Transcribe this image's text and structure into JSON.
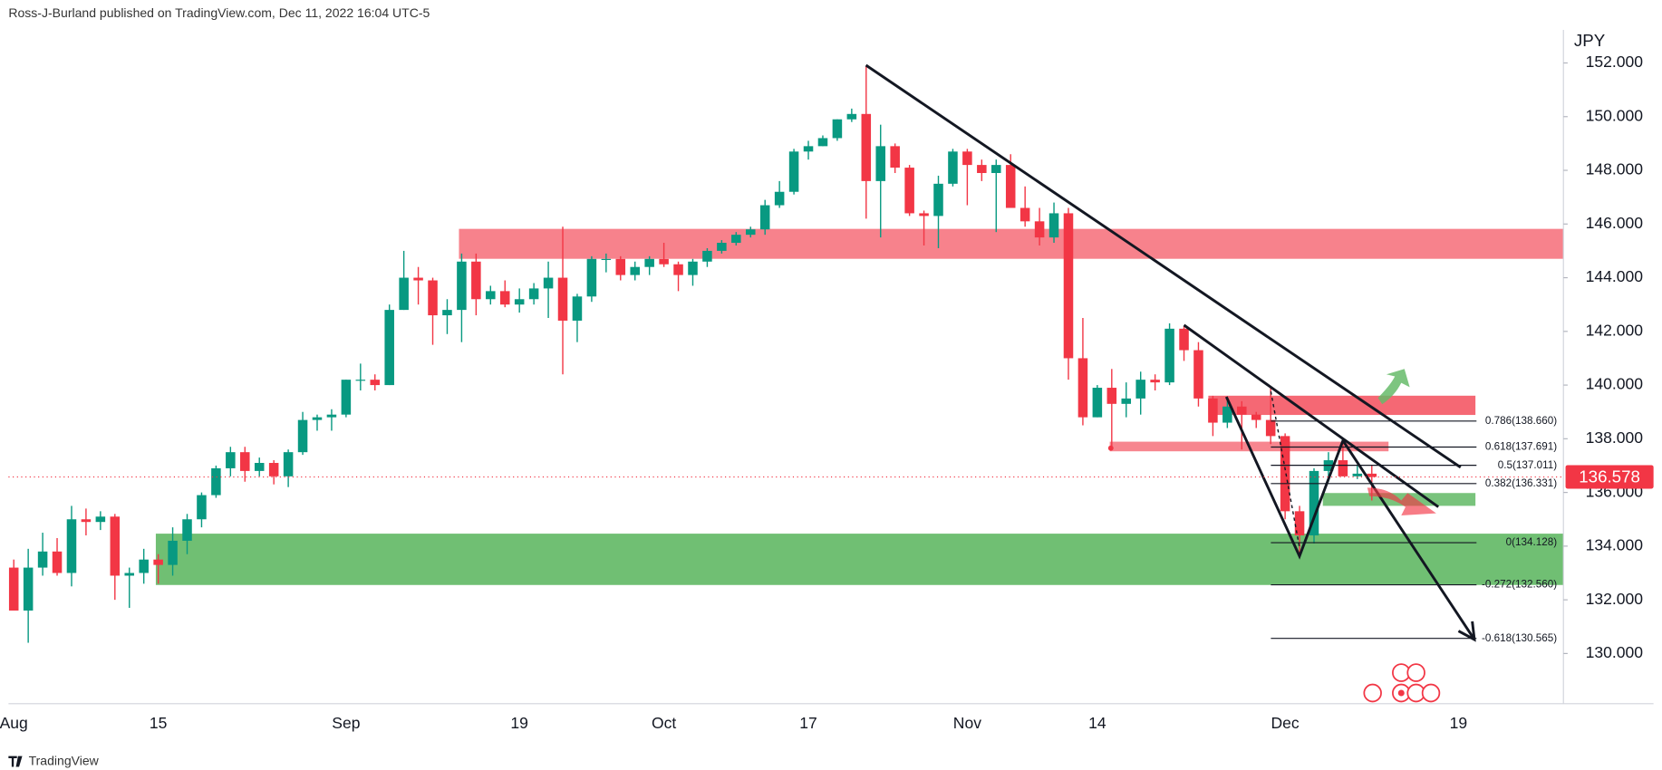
{
  "chart_data": {
    "type": "candlestick",
    "header": "Ross-J-Burland published on TradingView.com, Dec 11, 2022 16:04 UTC-5",
    "currency": "JPY",
    "brand": "TradingView",
    "up_color": "#089981",
    "down_color": "#f23645",
    "categories": [
      "Aug",
      null,
      null,
      null,
      null,
      null,
      null,
      null,
      null,
      null,
      "15",
      null,
      null,
      null,
      null,
      null,
      null,
      null,
      null,
      null,
      null,
      null,
      null,
      "Sep",
      null,
      null,
      null,
      null,
      null,
      null,
      null,
      null,
      null,
      null,
      null,
      "19",
      null,
      null,
      null,
      null,
      null,
      null,
      null,
      null,
      null,
      "Oct",
      null,
      null,
      null,
      null,
      null,
      null,
      null,
      null,
      null,
      "17",
      null,
      null,
      null,
      null,
      null,
      null,
      null,
      null,
      null,
      null,
      "Nov",
      null,
      null,
      null,
      null,
      null,
      null,
      null,
      null,
      "14",
      null,
      null,
      null,
      null,
      null,
      null,
      null,
      null,
      null,
      null,
      null,
      null,
      "Dec",
      null,
      null,
      null,
      null,
      null,
      null,
      null,
      null,
      null,
      null,
      null,
      "19",
      null,
      null,
      null,
      null,
      null,
      null,
      null
    ],
    "open": [
      133.2,
      131.6,
      133.2,
      133.8,
      133.0,
      135.0,
      134.9,
      135.1,
      132.9,
      133.0,
      133.5,
      133.3,
      134.2,
      135.0,
      135.9,
      136.9,
      137.5,
      136.8,
      137.1,
      136.6,
      137.5,
      138.7,
      138.8,
      138.9,
      140.2,
      140.2,
      140.0,
      142.8,
      144.0,
      143.9,
      142.6,
      142.8,
      144.6,
      143.2,
      143.5,
      143.0,
      143.2,
      143.6,
      144.0,
      142.4,
      143.3,
      144.7,
      144.7,
      144.1,
      144.4,
      144.7,
      144.5,
      144.1,
      144.6,
      145.0,
      145.3,
      145.6,
      145.8,
      146.7,
      147.2,
      148.7,
      148.9,
      149.2,
      149.9,
      150.1,
      147.6,
      148.9,
      148.1,
      146.4,
      146.3,
      147.5,
      148.7,
      148.2,
      147.9,
      148.2,
      146.6,
      146.1,
      145.5,
      146.4,
      141.0,
      138.8,
      139.9,
      139.3,
      139.5,
      140.2,
      140.1,
      142.1,
      141.3,
      139.5,
      138.6,
      139.2,
      138.9,
      138.7,
      138.1,
      135.3,
      134.4,
      136.8,
      137.2,
      136.6,
      136.7,
      null,
      null,
      null,
      null,
      null,
      null,
      null,
      null,
      null,
      null,
      null,
      null,
      null
    ],
    "high": [
      133.5,
      133.9,
      134.5,
      134.3,
      135.5,
      135.4,
      135.3,
      135.2,
      133.2,
      133.9,
      133.7,
      134.7,
      135.2,
      136.0,
      137.0,
      137.7,
      137.7,
      137.3,
      137.2,
      137.6,
      139.0,
      138.9,
      139.1,
      140.2,
      140.8,
      140.4,
      143.0,
      145.0,
      144.4,
      144.0,
      143.2,
      144.9,
      144.9,
      143.7,
      143.9,
      143.6,
      143.8,
      144.6,
      145.9,
      143.4,
      144.8,
      144.9,
      144.8,
      144.6,
      144.8,
      145.3,
      144.6,
      144.7,
      145.1,
      145.4,
      145.7,
      145.9,
      146.9,
      147.6,
      148.8,
      149.1,
      149.3,
      149.9,
      150.3,
      151.9,
      149.7,
      149.0,
      148.2,
      146.5,
      147.8,
      148.8,
      148.8,
      148.4,
      148.4,
      148.6,
      147.4,
      146.6,
      146.8,
      146.6,
      142.5,
      140.0,
      140.6,
      140.1,
      140.5,
      140.4,
      142.3,
      142.2,
      141.6,
      139.6,
      139.4,
      139.4,
      139.0,
      139.9,
      138.2,
      135.5,
      136.9,
      137.5,
      137.9,
      137.0,
      137.0,
      null,
      null,
      null,
      null,
      null,
      null,
      null,
      null,
      null,
      null,
      null,
      null,
      null
    ],
    "low": [
      131.6,
      130.4,
      132.9,
      132.9,
      132.5,
      134.4,
      134.6,
      132.0,
      131.7,
      132.6,
      132.6,
      132.9,
      133.7,
      134.7,
      135.8,
      136.6,
      136.4,
      136.6,
      136.3,
      136.2,
      137.4,
      138.3,
      138.3,
      138.8,
      139.8,
      139.8,
      140.0,
      142.8,
      143.0,
      141.5,
      141.9,
      141.6,
      142.6,
      143.0,
      142.9,
      142.7,
      143.0,
      142.5,
      140.4,
      141.6,
      143.1,
      144.2,
      143.9,
      143.9,
      144.1,
      144.4,
      143.5,
      143.7,
      144.4,
      144.9,
      145.2,
      145.5,
      145.6,
      146.6,
      147.1,
      148.4,
      148.9,
      149.1,
      149.8,
      146.2,
      145.5,
      147.9,
      146.3,
      145.2,
      145.1,
      147.4,
      146.7,
      147.6,
      145.7,
      146.6,
      145.9,
      145.2,
      145.3,
      140.2,
      138.5,
      138.8,
      137.7,
      138.8,
      138.9,
      139.8,
      140.0,
      140.9,
      139.2,
      138.1,
      138.4,
      137.6,
      138.4,
      137.8,
      135.0,
      133.6,
      134.1,
      136.4,
      136.6,
      136.5,
      135.7,
      null,
      null,
      null,
      null,
      null,
      null,
      null,
      null,
      null,
      null,
      null,
      null,
      null
    ],
    "close": [
      131.6,
      133.2,
      133.8,
      133.0,
      135.0,
      134.9,
      135.1,
      132.9,
      133.0,
      133.5,
      133.3,
      134.2,
      135.0,
      135.9,
      136.9,
      137.5,
      136.8,
      137.1,
      136.6,
      137.5,
      138.7,
      138.8,
      138.9,
      140.2,
      140.2,
      140.0,
      142.8,
      144.0,
      143.9,
      142.6,
      142.8,
      144.6,
      143.2,
      143.5,
      143.0,
      143.2,
      143.6,
      144.0,
      142.4,
      143.3,
      144.7,
      144.7,
      144.1,
      144.4,
      144.7,
      144.5,
      144.1,
      144.6,
      145.0,
      145.3,
      145.6,
      145.8,
      146.7,
      147.2,
      148.7,
      148.9,
      149.2,
      149.9,
      150.1,
      147.6,
      148.9,
      148.1,
      146.4,
      146.3,
      147.5,
      148.7,
      148.2,
      147.9,
      148.2,
      146.6,
      146.1,
      145.5,
      146.4,
      141.0,
      138.8,
      139.9,
      139.3,
      139.5,
      140.2,
      140.1,
      142.1,
      141.3,
      139.5,
      138.6,
      139.2,
      138.9,
      138.7,
      138.1,
      135.3,
      134.4,
      136.8,
      137.2,
      136.6,
      136.7,
      136.578,
      null,
      null,
      null,
      null,
      null,
      null,
      null,
      null,
      null,
      null,
      null,
      null,
      null
    ],
    "last_price": 136.578,
    "ylim": [
      128.13,
      153.23
    ],
    "yticks": [
      {
        "value": 130,
        "label": "130.000"
      },
      {
        "value": 132,
        "label": "132.000"
      },
      {
        "value": 134,
        "label": "134.000"
      },
      {
        "value": 136,
        "label": "136.000"
      },
      {
        "value": 138,
        "label": "138.000"
      },
      {
        "value": 140,
        "label": "140.000"
      },
      {
        "value": 142,
        "label": "142.000"
      },
      {
        "value": 144,
        "label": "144.000"
      },
      {
        "value": 146,
        "label": "146.000"
      },
      {
        "value": 148,
        "label": "148.000"
      },
      {
        "value": 150,
        "label": "150.000"
      },
      {
        "value": 152,
        "label": "152.000"
      }
    ],
    "fib_levels": [
      {
        "value": 138.66,
        "label": "0.786(138.660)"
      },
      {
        "value": 137.691,
        "label": "0.618(137.691)"
      },
      {
        "value": 137.011,
        "label": "0.5(137.011)"
      },
      {
        "value": 136.331,
        "label": "0.382(136.331)"
      },
      {
        "value": 134.128,
        "label": "0(134.128)"
      },
      {
        "value": 132.56,
        "label": "-0.272(132.560)"
      },
      {
        "value": 130.565,
        "label": "-0.618(130.565)"
      }
    ]
  }
}
